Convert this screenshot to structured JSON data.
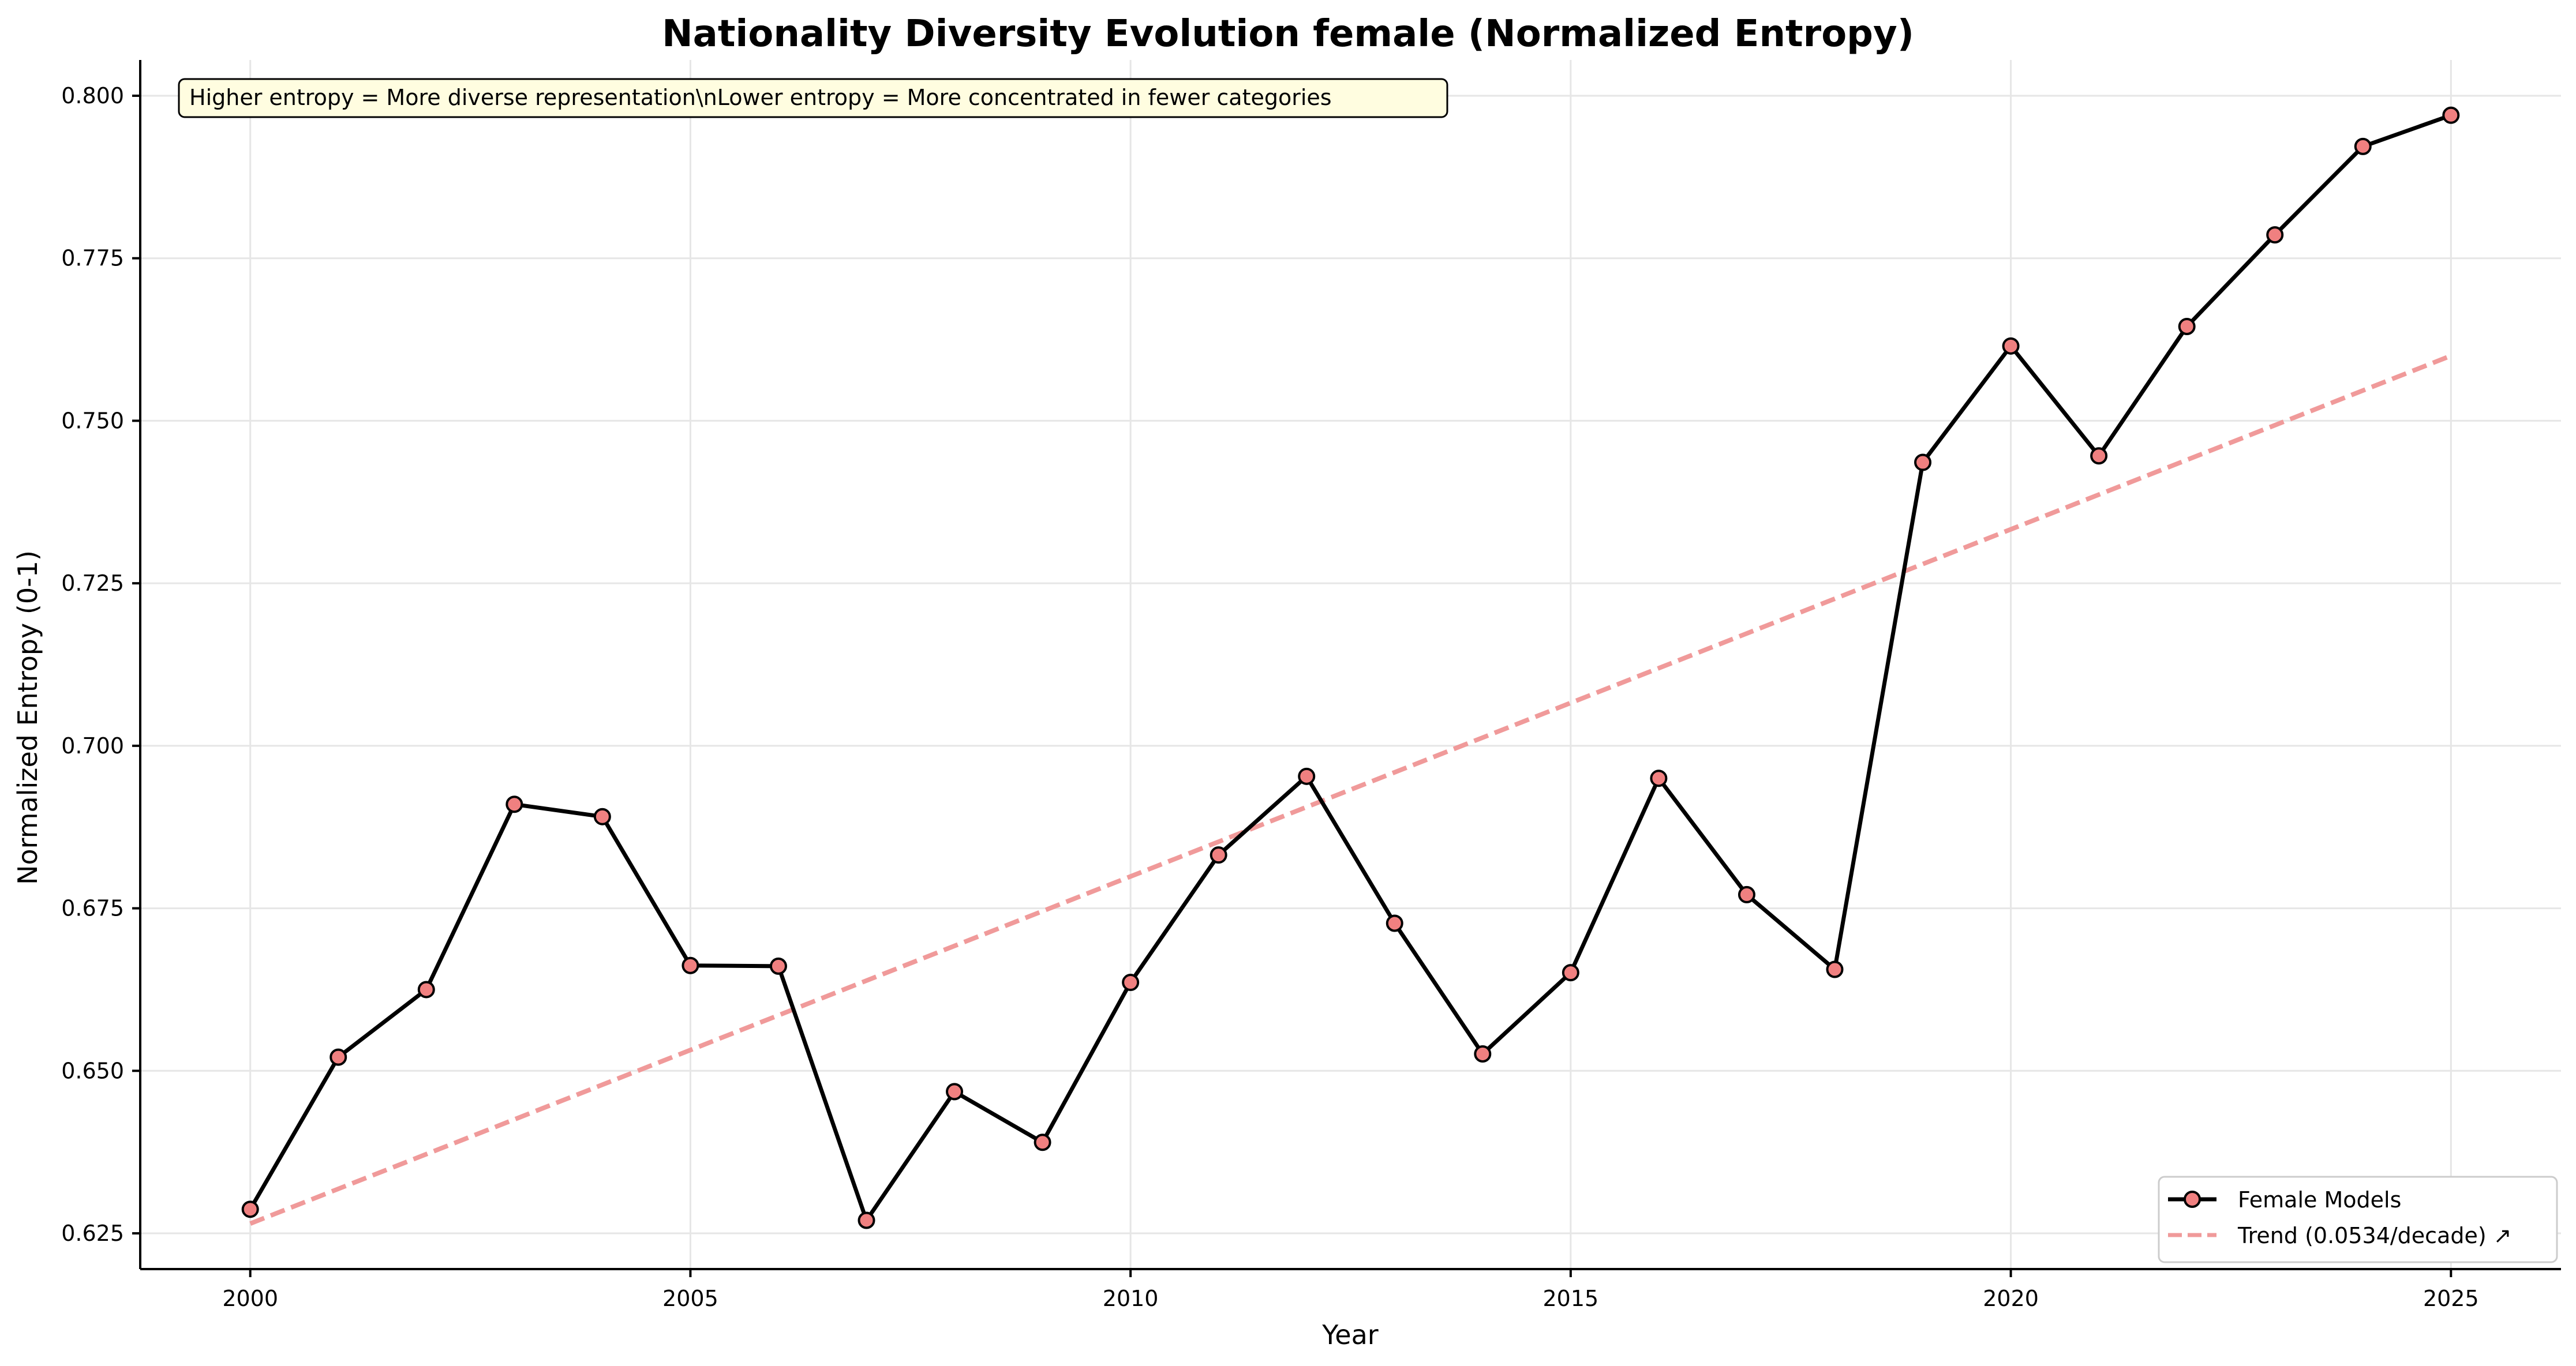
{
  "chart_data": {
    "type": "line",
    "title": "Nationality Diversity Evolution female (Normalized Entropy)",
    "xlabel": "Year",
    "ylabel": "Normalized Entropy (0-1)",
    "xlim": [
      1998.75,
      2026.25
    ],
    "ylim": [
      0.6195,
      0.8055
    ],
    "x_ticks": [
      2000,
      2005,
      2010,
      2015,
      2020,
      2025
    ],
    "y_ticks": [
      0.625,
      0.65,
      0.675,
      0.7,
      0.725,
      0.75,
      0.775,
      0.8
    ],
    "x_tick_labels": [
      "2000",
      "2005",
      "2010",
      "2015",
      "2020",
      "2025"
    ],
    "y_tick_labels": [
      "0.625",
      "0.650",
      "0.675",
      "0.700",
      "0.725",
      "0.750",
      "0.775",
      "0.800"
    ],
    "grid": true,
    "legend_position": "bottom-right",
    "series": [
      {
        "name": "Female Models",
        "style": "solid line with circle markers",
        "line_color": "#000000",
        "marker_color": "#f08080",
        "x": [
          2000,
          2001,
          2002,
          2003,
          2004,
          2005,
          2006,
          2007,
          2008,
          2009,
          2010,
          2011,
          2012,
          2013,
          2014,
          2015,
          2016,
          2017,
          2018,
          2019,
          2020,
          2021,
          2022,
          2023,
          2024,
          2025
        ],
        "y": [
          0.6287,
          0.6521,
          0.6625,
          0.691,
          0.6891,
          0.6662,
          0.6661,
          0.627,
          0.6468,
          0.639,
          0.6636,
          0.6832,
          0.6953,
          0.6727,
          0.6526,
          0.6651,
          0.695,
          0.6771,
          0.6656,
          0.7436,
          0.7615,
          0.7446,
          0.7645,
          0.7786,
          0.7922,
          0.797
        ]
      },
      {
        "name": "Trend (0.0534/decade) ↗",
        "style": "dashed line",
        "line_color": "#f09a9a",
        "x": [
          2000,
          2025
        ],
        "y": [
          0.6265,
          0.76
        ]
      }
    ],
    "annotation": "Higher entropy = More diverse representation\\nLower entropy = More concentrated in fewer categories"
  }
}
